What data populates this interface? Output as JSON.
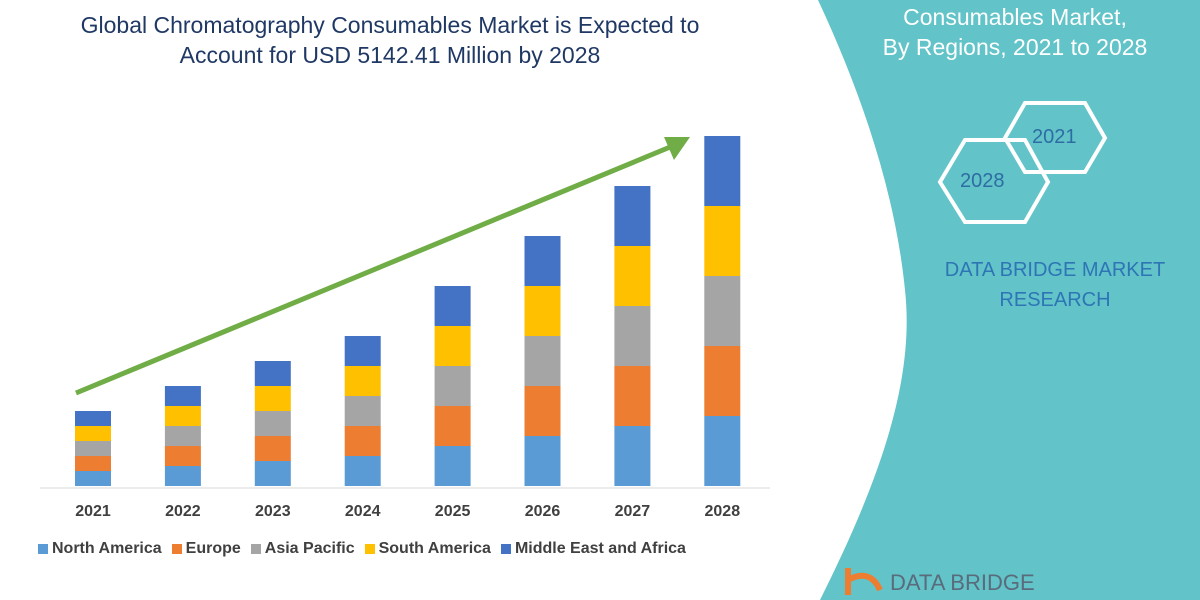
{
  "header": {
    "title_line1": "Global Chromatography Consumables Market is Expected to",
    "title_line2": "Account for USD 5142.41 Million by 2028"
  },
  "side_panel": {
    "title_line1": "Consumables Market,",
    "title_line2": "By Regions, 2021 to 2028",
    "hex_1": "2021",
    "hex_2": "2028",
    "brand_line1": "DATA BRIDGE MARKET",
    "brand_line2": "RESEARCH",
    "logo_text": "DATA BRIDGE",
    "panel_color": "#62c3c8"
  },
  "chart_data": {
    "type": "bar",
    "stacked": true,
    "categories": [
      "2021",
      "2022",
      "2023",
      "2024",
      "2025",
      "2026",
      "2027",
      "2028"
    ],
    "series": [
      {
        "name": "North America",
        "color": "#5b9bd5",
        "values": [
          15,
          20,
          25,
          30,
          40,
          50,
          60,
          70
        ]
      },
      {
        "name": "Europe",
        "color": "#ed7d31",
        "values": [
          15,
          20,
          25,
          30,
          40,
          50,
          60,
          70
        ]
      },
      {
        "name": "Asia Pacific",
        "color": "#a5a5a5",
        "values": [
          15,
          20,
          25,
          30,
          40,
          50,
          60,
          70
        ]
      },
      {
        "name": "South America",
        "color": "#ffc000",
        "values": [
          15,
          20,
          25,
          30,
          40,
          50,
          60,
          70
        ]
      },
      {
        "name": "Middle East and Africa",
        "color": "#4472c4",
        "values": [
          15,
          20,
          25,
          30,
          40,
          50,
          60,
          70
        ]
      }
    ],
    "ylim": [
      0,
      360
    ],
    "grid": false,
    "legend": "bottom",
    "trend_arrow_color": "#70ad47"
  }
}
